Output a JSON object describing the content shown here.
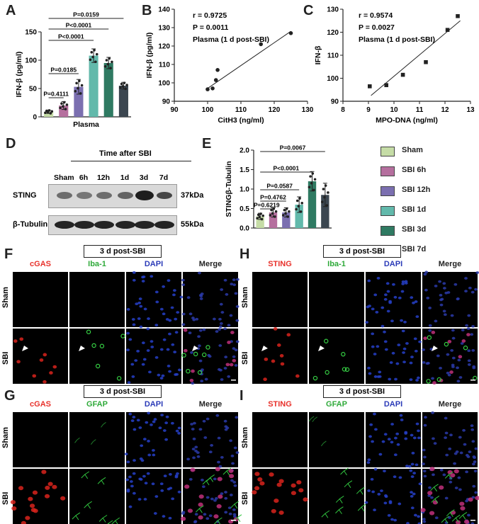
{
  "panels": {
    "A": "A",
    "B": "B",
    "C": "C",
    "D": "D",
    "E": "E",
    "F": "F",
    "G": "G",
    "H": "H",
    "I": "I"
  },
  "colors": {
    "sham": "#c5dca6",
    "sbi6h": "#b56f9e",
    "sbi12h": "#7b6fb0",
    "sbi1d": "#62b9ab",
    "sbi3d": "#2f7a62",
    "sbi7d": "#3b4650",
    "red": "#e8312b",
    "green": "#2faa3a",
    "blue": "#2b3bb8"
  },
  "legend": [
    "Sham",
    "SBI 6h",
    "SBI 12h",
    "SBI 1d",
    "SBI 3d",
    "SBI 7d"
  ],
  "chart_data": [
    {
      "type": "bar",
      "panel": "A",
      "ylabel": "IFN-β (pg/ml)",
      "xlabel": "Plasma",
      "ylim": [
        0,
        150
      ],
      "yticks": [
        "0",
        "50",
        "100",
        "150"
      ],
      "categories": [
        "Sham",
        "SBI 6h",
        "SBI 12h",
        "SBI 1d",
        "SBI 3d",
        "SBI 7d"
      ],
      "values": [
        9,
        20,
        53,
        108,
        95,
        55
      ],
      "errors": [
        3,
        7,
        13,
        12,
        10,
        6
      ],
      "pvalues": [
        "P=0.4111",
        "P=0.0185",
        "P<0.0001",
        "P<0.0001",
        "P=0.0159"
      ]
    },
    {
      "type": "scatter",
      "panel": "B",
      "stats": [
        "r = 0.9725",
        "P = 0.0011",
        "Plasma (1 d post-SBI)"
      ],
      "xlabel": "CitH3 (ng/ml)",
      "ylabel": "IFN-β (pg/ml)",
      "xlim": [
        90,
        130
      ],
      "ylim": [
        90,
        140
      ],
      "xticks": [
        "90",
        "100",
        "110",
        "120",
        "130"
      ],
      "yticks": [
        "90",
        "100",
        "110",
        "120",
        "130",
        "140"
      ],
      "x": [
        100,
        101.5,
        102.5,
        103,
        116,
        125
      ],
      "y": [
        96.5,
        97,
        101.5,
        107,
        121,
        127
      ],
      "fit": [
        [
          100,
          97
        ],
        [
          125,
          128
        ]
      ]
    },
    {
      "type": "scatter",
      "panel": "C",
      "stats": [
        "r = 0.9574",
        "P = 0.0027",
        "Plasma (1 d post-SBI)"
      ],
      "xlabel": "MPO-DNA (ng/ml)",
      "ylabel": "IFN-β",
      "xlim": [
        8,
        13
      ],
      "ylim": [
        90,
        130
      ],
      "xticks": [
        "8",
        "9",
        "10",
        "11",
        "12",
        "13"
      ],
      "yticks": [
        "90",
        "100",
        "110",
        "120",
        "130"
      ],
      "x": [
        9.05,
        9.7,
        10.35,
        11.25,
        12.1,
        12.5
      ],
      "y": [
        96.5,
        97,
        101.5,
        107,
        121,
        127
      ],
      "fit": [
        [
          9.1,
          92.5
        ],
        [
          12.6,
          125
        ]
      ]
    },
    {
      "type": "bar",
      "panel": "E",
      "ylabel": "STINGβ-Tubulin",
      "ylim": [
        0,
        2.0
      ],
      "yticks": [
        "0.0",
        "0.5",
        "1.0",
        "1.5",
        "2.0"
      ],
      "categories": [
        "Sham",
        "SBI 6h",
        "SBI 12h",
        "SBI 1d",
        "SBI 3d",
        "SBI 7d"
      ],
      "values": [
        0.3,
        0.4,
        0.4,
        0.6,
        1.2,
        0.85
      ],
      "errors": [
        0.08,
        0.12,
        0.12,
        0.2,
        0.25,
        0.3
      ],
      "pvalues": [
        "P=0.6219",
        "P=0.4762",
        "P=0.0587",
        "P<0.0001",
        "P=0.0067"
      ]
    }
  ],
  "blot": {
    "title": "Time after SBI",
    "lanes": [
      "Sham",
      "6h",
      "12h",
      "1d",
      "3d",
      "7d"
    ],
    "rows": [
      {
        "label": "STING",
        "size": "37kDa"
      },
      {
        "label": "β-Tubulin",
        "size": "55kDa"
      }
    ]
  },
  "micro": {
    "F": {
      "title": "3 d post-SBI",
      "cols": [
        "cGAS",
        "Iba-1",
        "DAPI",
        "Merge"
      ],
      "rows": [
        "Sham",
        "SBI"
      ]
    },
    "H": {
      "title": "3 d post-SBI",
      "cols": [
        "STING",
        "Iba-1",
        "DAPI",
        "Merge"
      ],
      "rows": [
        "Sham",
        "SBI"
      ]
    },
    "G": {
      "title": "3 d post-SBI",
      "cols": [
        "cGAS",
        "GFAP",
        "DAPI",
        "Merge"
      ],
      "rows": [
        "Sham",
        "SBI"
      ]
    },
    "I": {
      "title": "3 d post-SBI",
      "cols": [
        "STING",
        "GFAP",
        "DAPI",
        "Merge"
      ],
      "rows": [
        "Sham",
        "SBI"
      ]
    }
  }
}
